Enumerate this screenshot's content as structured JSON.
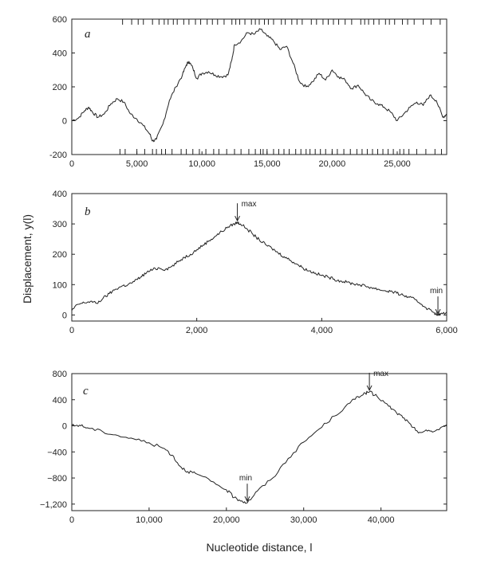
{
  "ylabel": "Displacement, y(l)",
  "xlabel": "Nucleotide distance, l",
  "chart_data": [
    {
      "type": "line",
      "panel": "a",
      "xlim": [
        0,
        28800
      ],
      "ylim": [
        -200,
        600
      ],
      "xticks": [
        0,
        5000,
        10000,
        15000,
        20000,
        25000
      ],
      "xtick_labels": [
        "0",
        "5,000",
        "10,000",
        "15,000",
        "20,000",
        "25,000"
      ],
      "yticks": [
        -200,
        0,
        200,
        400,
        600
      ],
      "ytick_labels": [
        "-200",
        "0",
        "200",
        "400",
        "600"
      ],
      "x": [
        0,
        500,
        1000,
        1300,
        1600,
        2000,
        2500,
        3000,
        3500,
        4000,
        4500,
        5000,
        5500,
        6000,
        6200,
        6500,
        7000,
        7500,
        8000,
        8500,
        8800,
        9000,
        9300,
        9600,
        10000,
        10500,
        11000,
        11500,
        12000,
        12300,
        12500,
        13000,
        13500,
        14000,
        14500,
        15000,
        15500,
        16000,
        16500,
        17000,
        17500,
        18000,
        18500,
        19000,
        19500,
        20000,
        20500,
        21000,
        21500,
        22000,
        22500,
        23000,
        23500,
        24000,
        24500,
        25000,
        25500,
        26000,
        26500,
        27000,
        27500,
        28000,
        28500,
        28800
      ],
      "values": [
        0,
        15,
        60,
        80,
        50,
        20,
        40,
        100,
        130,
        110,
        40,
        10,
        -30,
        -80,
        -120,
        -110,
        -20,
        120,
        200,
        270,
        330,
        350,
        310,
        250,
        280,
        290,
        270,
        260,
        270,
        360,
        450,
        470,
        520,
        510,
        540,
        500,
        470,
        420,
        440,
        340,
        230,
        200,
        230,
        280,
        240,
        300,
        260,
        240,
        190,
        210,
        160,
        120,
        100,
        80,
        50,
        0,
        40,
        80,
        110,
        90,
        150,
        120,
        20,
        40
      ],
      "tick_marks_top": [
        3900,
        4600,
        5100,
        5500,
        6200,
        6700,
        7100,
        7400,
        7800,
        8100,
        8600,
        9000,
        9500,
        9900,
        10400,
        10800,
        11200,
        11700,
        12300,
        12600,
        12900,
        13300,
        13800,
        14100,
        14400,
        14800,
        15100,
        15500,
        16100,
        16400,
        16900,
        17300,
        17700,
        18400,
        18800,
        19300,
        19700,
        20100,
        20500,
        21000,
        21500,
        22200,
        22500,
        22800,
        23200,
        23600,
        24100,
        24400,
        24800,
        25400,
        25800,
        26300,
        27000,
        27600,
        28300
      ],
      "tick_marks_bottom": [
        3700,
        4100,
        5000,
        5600,
        6200,
        6500,
        6900,
        7200,
        7700,
        8400,
        8800,
        9300,
        9800,
        10300,
        10900,
        11300,
        11900,
        12500,
        13000,
        13600,
        14100,
        14500,
        14700,
        15000,
        15500,
        15900,
        16300,
        16700,
        17200,
        17600,
        18000,
        18300,
        18700,
        19100,
        19500,
        20000,
        20400,
        20900,
        21400,
        21900,
        22300,
        22700,
        23100,
        23500,
        23900,
        24300,
        24700,
        25200,
        25500,
        25900,
        26500,
        27200,
        27900,
        28400
      ]
    },
    {
      "type": "line",
      "panel": "b",
      "xlim": [
        0,
        6000
      ],
      "ylim": [
        -20,
        400
      ],
      "xticks": [
        0,
        2000,
        4000,
        6000
      ],
      "xtick_labels": [
        "0",
        "2,000",
        "4,000",
        "6,000"
      ],
      "yticks": [
        0,
        100,
        200,
        300,
        400
      ],
      "ytick_labels": [
        "0",
        "100",
        "200",
        "300",
        "400"
      ],
      "x": [
        0,
        100,
        200,
        300,
        400,
        500,
        600,
        700,
        800,
        900,
        1000,
        1100,
        1200,
        1300,
        1400,
        1500,
        1600,
        1700,
        1800,
        1900,
        2000,
        2100,
        2200,
        2300,
        2400,
        2500,
        2600,
        2650,
        2700,
        2800,
        2900,
        3000,
        3100,
        3200,
        3300,
        3400,
        3500,
        3600,
        3700,
        3800,
        3900,
        4000,
        4100,
        4200,
        4300,
        4400,
        4500,
        4600,
        4700,
        4800,
        4900,
        5000,
        5100,
        5200,
        5300,
        5400,
        5500,
        5600,
        5700,
        5800,
        5860,
        5900,
        6000
      ],
      "values": [
        15,
        35,
        40,
        45,
        38,
        55,
        70,
        85,
        95,
        100,
        110,
        125,
        140,
        150,
        155,
        150,
        160,
        175,
        190,
        200,
        215,
        230,
        245,
        260,
        275,
        290,
        300,
        305,
        300,
        285,
        265,
        248,
        232,
        220,
        205,
        192,
        180,
        168,
        155,
        145,
        138,
        130,
        125,
        118,
        112,
        108,
        103,
        100,
        95,
        90,
        85,
        80,
        78,
        72,
        65,
        58,
        50,
        35,
        20,
        8,
        -2,
        3,
        10
      ],
      "annotations": [
        {
          "text": "max",
          "x": 2650,
          "y": 305
        },
        {
          "text": "min",
          "x": 5860,
          "y": -2
        }
      ]
    },
    {
      "type": "line",
      "panel": "c",
      "xlim": [
        0,
        48500
      ],
      "ylim": [
        -1300,
        800
      ],
      "xticks": [
        0,
        10000,
        20000,
        30000,
        40000
      ],
      "xtick_labels": [
        "0",
        "10,000",
        "20,000",
        "30,000",
        "40,000"
      ],
      "yticks": [
        -1200,
        -800,
        -400,
        0,
        400,
        800
      ],
      "ytick_labels": [
        "−1,200",
        "−800",
        "−400",
        "0",
        "400",
        "800"
      ],
      "x": [
        0,
        1000,
        2000,
        4000,
        6000,
        8000,
        10000,
        12000,
        13000,
        14000,
        15000,
        16000,
        18000,
        20000,
        21000,
        22000,
        22700,
        24000,
        26000,
        28000,
        30000,
        32000,
        34000,
        36000,
        37000,
        38000,
        38500,
        39500,
        41000,
        42000,
        43000,
        44000,
        45000,
        46000,
        47000,
        48500
      ],
      "values": [
        0,
        10,
        -30,
        -90,
        -150,
        -200,
        -260,
        -350,
        -450,
        -620,
        -700,
        -730,
        -850,
        -980,
        -1100,
        -1150,
        -1180,
        -1000,
        -800,
        -500,
        -250,
        -50,
        150,
        350,
        450,
        500,
        520,
        450,
        300,
        200,
        120,
        -20,
        -100,
        -80,
        -80,
        20
      ],
      "annotations": [
        {
          "text": "max",
          "x": 38500,
          "y": 520
        },
        {
          "text": "min",
          "x": 22700,
          "y": -1180
        }
      ]
    }
  ]
}
